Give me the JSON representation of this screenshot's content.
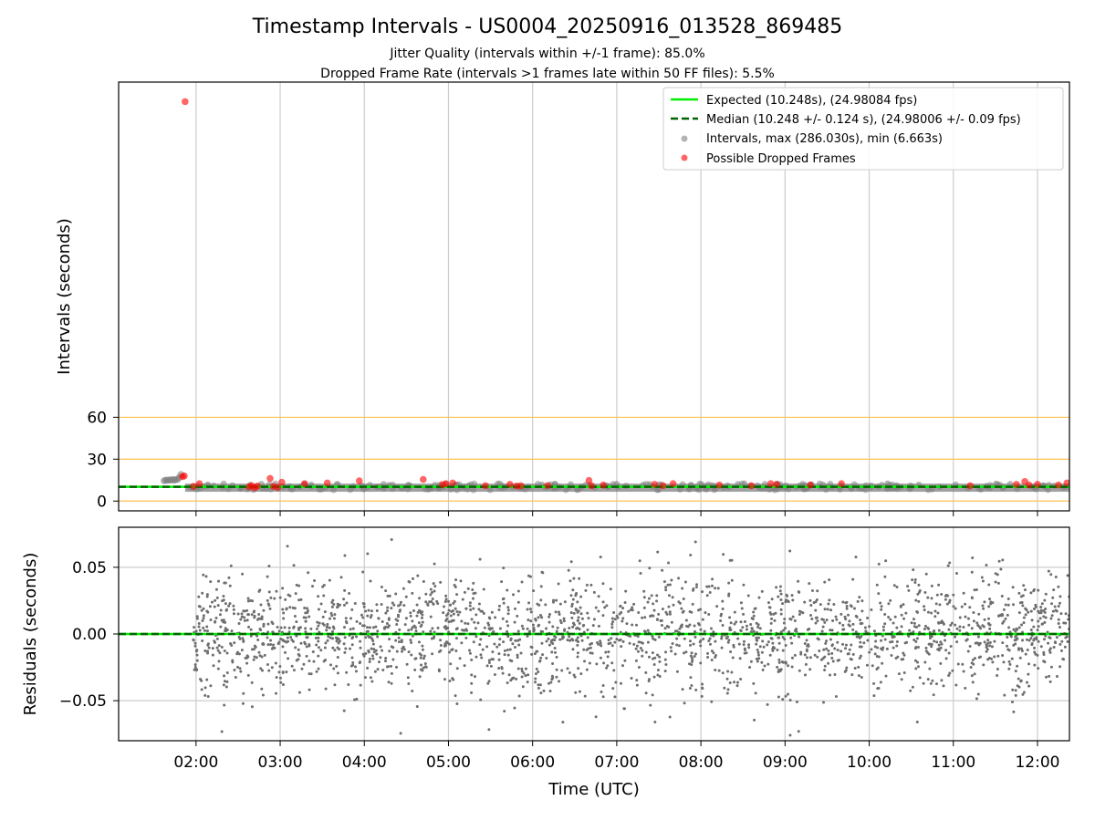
{
  "title": "Timestamp Intervals - US0004_20250916_013528_869485",
  "subtitle_lines": [
    "Jitter Quality (intervals within +/-1 frame): 85.0%",
    "Dropped Frame Rate (intervals >1 frames late within 50 FF files): 5.5%"
  ],
  "colors": {
    "expected": "#00ee00",
    "median": "#006400",
    "intervals": "#808080",
    "dropped": "#ff0000",
    "threshold": "#ffc04d",
    "grid": "#cccccc"
  },
  "chart_data": [
    {
      "type": "scatter",
      "name": "intervals",
      "xlabel": "",
      "ylabel": "Intervals (seconds)",
      "x_unit": "hours UTC",
      "xlim": [
        1.08,
        12.38
      ],
      "ylim": [
        -7,
        300
      ],
      "yticks": [
        0,
        30,
        60
      ],
      "ytick_labels": [
        "0",
        "30",
        "60"
      ],
      "grid": {
        "x": true,
        "y": false
      },
      "threshold_lines": [
        0,
        30,
        60
      ],
      "expected_value": 10.248,
      "median_value": 10.248,
      "legend_position": "upper right",
      "legend": [
        "Expected (10.248s), (24.98084 fps)",
        "Median (10.248 +/- 0.124 s), (24.98006 +/- 0.09 fps)",
        "Intervals, max (286.030s), min (6.663s)",
        "Possible Dropped Frames"
      ],
      "intervals_band": {
        "x_start": 1.87,
        "x_end": 12.38,
        "y_min": 6.663,
        "y_max": 12.5
      },
      "early_intervals": [
        [
          1.62,
          14.5
        ],
        [
          1.64,
          15.0
        ],
        [
          1.66,
          14.8
        ],
        [
          1.68,
          15.2
        ],
        [
          1.7,
          15.0
        ],
        [
          1.72,
          15.4
        ],
        [
          1.74,
          14.9
        ],
        [
          1.76,
          15.3
        ],
        [
          1.78,
          15.6
        ],
        [
          1.8,
          16.8
        ],
        [
          1.82,
          19.0
        ]
      ],
      "dropped_frames": [
        [
          1.87,
          286.03
        ],
        [
          1.84,
          17.5
        ],
        [
          1.86,
          18.0
        ],
        [
          1.97,
          10.5
        ],
        [
          2.04,
          12.5
        ],
        [
          2.63,
          10.2
        ],
        [
          2.66,
          11.0
        ],
        [
          2.7,
          9.5
        ],
        [
          2.73,
          10.8
        ],
        [
          2.88,
          16.2
        ],
        [
          2.92,
          10.5
        ],
        [
          2.97,
          9.8
        ],
        [
          3.02,
          13.5
        ],
        [
          3.29,
          12.5
        ],
        [
          3.56,
          13.0
        ],
        [
          3.94,
          14.5
        ],
        [
          4.7,
          15.5
        ],
        [
          4.93,
          11.8
        ],
        [
          4.97,
          12.5
        ],
        [
          5.05,
          13.0
        ],
        [
          5.44,
          11.0
        ],
        [
          5.73,
          12.0
        ],
        [
          5.81,
          10.8
        ],
        [
          5.86,
          11.0
        ],
        [
          6.18,
          11.2
        ],
        [
          6.67,
          14.8
        ],
        [
          6.7,
          11.0
        ],
        [
          6.84,
          11.5
        ],
        [
          7.45,
          12.0
        ],
        [
          7.55,
          11.0
        ],
        [
          7.67,
          12.5
        ],
        [
          8.22,
          11.5
        ],
        [
          8.6,
          11.0
        ],
        [
          8.83,
          12.5
        ],
        [
          8.9,
          12.0
        ],
        [
          9.3,
          11.5
        ],
        [
          9.67,
          12.5
        ],
        [
          11.2,
          11.0
        ],
        [
          11.75,
          12.0
        ],
        [
          11.85,
          14.0
        ],
        [
          11.9,
          11.5
        ],
        [
          12.0,
          12.0
        ],
        [
          12.25,
          11.5
        ],
        [
          12.35,
          13.0
        ]
      ]
    },
    {
      "type": "scatter",
      "name": "residuals",
      "xlabel": "Time (UTC)",
      "ylabel": "Residuals (seconds)",
      "xlim": [
        1.08,
        12.38
      ],
      "ylim": [
        -0.08,
        0.08
      ],
      "yticks": [
        -0.05,
        0.0,
        0.05
      ],
      "ytick_labels": [
        "−0.05",
        "0.00",
        "0.05"
      ],
      "xticks": [
        2,
        3,
        4,
        5,
        6,
        7,
        8,
        9,
        10,
        11,
        12
      ],
      "xtick_labels": [
        "02:00",
        "03:00",
        "04:00",
        "05:00",
        "06:00",
        "07:00",
        "08:00",
        "09:00",
        "10:00",
        "11:00",
        "12:00"
      ],
      "grid": {
        "x": true,
        "y": true
      },
      "zero_line": 0.0,
      "residual_cloud": {
        "x_start": 1.96,
        "x_end": 12.38,
        "approx_points": 2300,
        "std": 0.022,
        "outlier_extent": 0.08
      }
    }
  ]
}
